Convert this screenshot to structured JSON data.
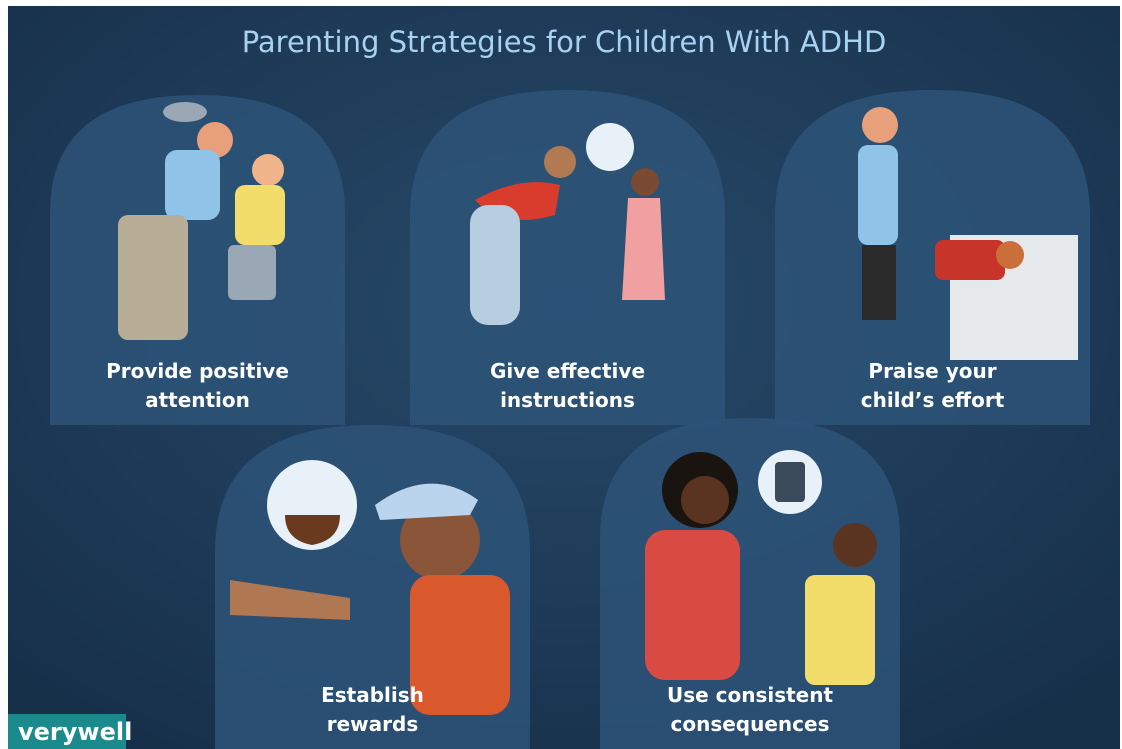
{
  "title": "Parenting Strategies for Children With ADHD",
  "panels": [
    {
      "label": [
        "Provide positive",
        "attention"
      ]
    },
    {
      "label": [
        "Give effective",
        "instructions"
      ]
    },
    {
      "label": [
        "Praise your",
        "child’s effort"
      ]
    },
    {
      "label": [
        "Establish",
        "rewards"
      ]
    },
    {
      "label": [
        "Use consistent",
        "consequences"
      ]
    }
  ],
  "brand": "verywell"
}
